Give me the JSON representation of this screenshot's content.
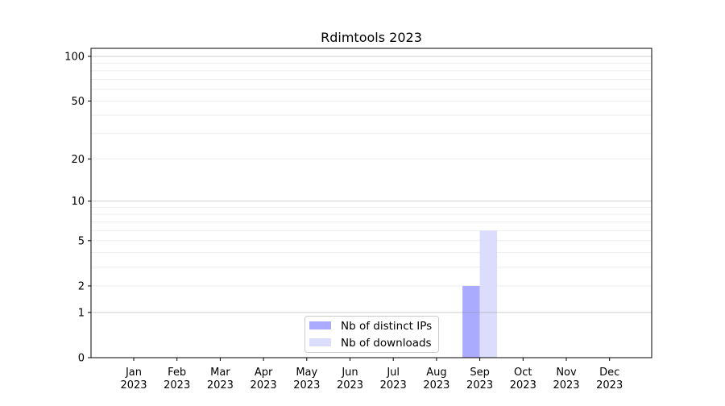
{
  "chart_data": {
    "type": "bar",
    "title": "Rdimtools 2023",
    "xlabel": "",
    "ylabel": "",
    "yscale": "log(1+y)",
    "ylim": [
      0,
      113
    ],
    "yticks": [
      0,
      1,
      2,
      5,
      10,
      20,
      50,
      100
    ],
    "grid": true,
    "legend_placement": "lower-center",
    "categories": [
      "Jan\n2023",
      "Feb\n2023",
      "Mar\n2023",
      "Apr\n2023",
      "May\n2023",
      "Jun\n2023",
      "Jul\n2023",
      "Aug\n2023",
      "Sep\n2023",
      "Oct\n2023",
      "Nov\n2023",
      "Dec\n2023"
    ],
    "series": [
      {
        "name": "Nb of distinct IPs",
        "color": "#aaaaff",
        "values": [
          0,
          0,
          0,
          0,
          0,
          0,
          0,
          0,
          2,
          0,
          0,
          0
        ]
      },
      {
        "name": "Nb of downloads",
        "color": "#dcdcfc",
        "values": [
          0,
          0,
          0,
          0,
          0,
          0,
          0,
          0,
          6,
          0,
          0,
          0
        ]
      }
    ]
  }
}
